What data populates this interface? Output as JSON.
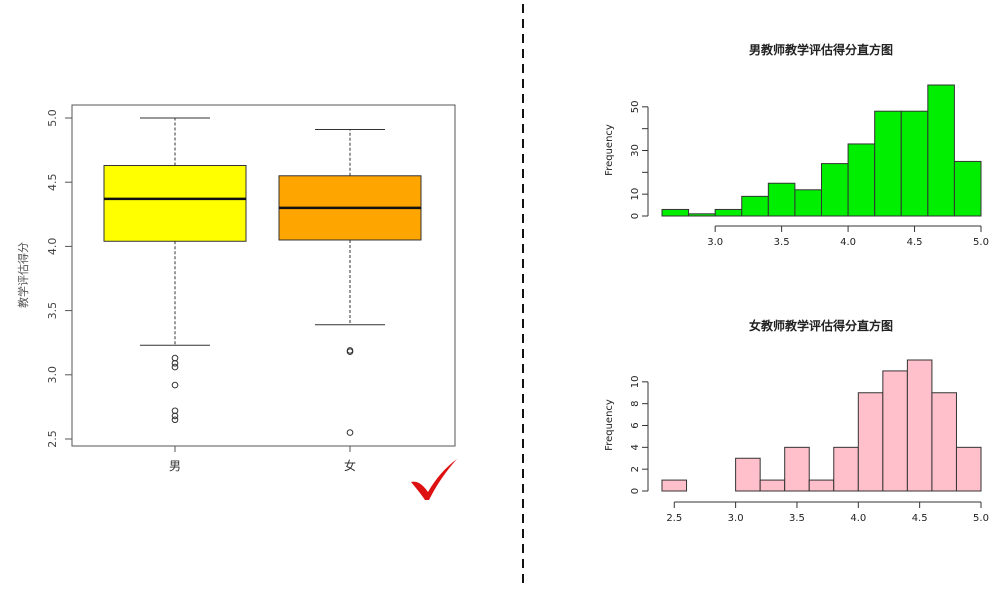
{
  "colors": {
    "box_male": "#ffff00",
    "box_female": "#ffa500",
    "hist_male": "#00ee00",
    "hist_female": "#ffc0cb",
    "check_mark": "#dd1111",
    "divider": "#111111"
  },
  "chart_data": [
    {
      "type": "box",
      "title": "",
      "xlabel": "",
      "ylabel": "教学评估得分",
      "ylim": [
        2.5,
        5.05
      ],
      "yticks": [
        "2.5",
        "3.0",
        "3.5",
        "4.0",
        "4.5",
        "5.0"
      ],
      "categories": [
        "男",
        "女"
      ],
      "boxes": [
        {
          "category": "男",
          "min": 3.23,
          "q1": 4.04,
          "median": 4.37,
          "q3": 4.63,
          "max": 5.0,
          "outliers": [
            3.13,
            3.09,
            3.06,
            2.92,
            2.72,
            2.68,
            2.65
          ]
        },
        {
          "category": "女",
          "min": 3.39,
          "q1": 4.05,
          "median": 4.3,
          "q3": 4.55,
          "max": 4.91,
          "outliers": [
            3.19,
            3.18,
            2.55
          ]
        }
      ],
      "grid": false,
      "annotation_icon": "check-mark-icon"
    },
    {
      "type": "histogram",
      "title": "男教师教学评估得分直方图",
      "xlabel": "",
      "ylabel": "Frequency",
      "xlim": [
        2.6,
        5.0
      ],
      "ylim": [
        0,
        60
      ],
      "xticks": [
        "3.0",
        "3.5",
        "4.0",
        "4.5",
        "5.0"
      ],
      "yticks": [
        "0",
        "10",
        "30",
        "50"
      ],
      "bins": [
        2.6,
        2.8,
        3.0,
        3.2,
        3.4,
        3.6,
        3.8,
        4.0,
        4.2,
        4.4,
        4.6,
        4.8,
        5.0
      ],
      "values": [
        3,
        1,
        3,
        9,
        15,
        12,
        24,
        33,
        48,
        48,
        60,
        25
      ]
    },
    {
      "type": "histogram",
      "title": "女教师教学评估得分直方图",
      "xlabel": "",
      "ylabel": "Frequency",
      "xlim": [
        2.4,
        5.0
      ],
      "ylim": [
        0,
        12
      ],
      "xticks": [
        "2.5",
        "3.0",
        "3.5",
        "4.0",
        "4.5",
        "5.0"
      ],
      "yticks": [
        "0",
        "2",
        "4",
        "6",
        "8",
        "10"
      ],
      "bins": [
        2.4,
        2.6,
        2.8,
        3.0,
        3.2,
        3.4,
        3.6,
        3.8,
        4.0,
        4.2,
        4.4,
        4.6,
        4.8,
        5.0
      ],
      "values": [
        1,
        0,
        0,
        3,
        1,
        4,
        1,
        4,
        9,
        11,
        12,
        9,
        4
      ]
    }
  ]
}
